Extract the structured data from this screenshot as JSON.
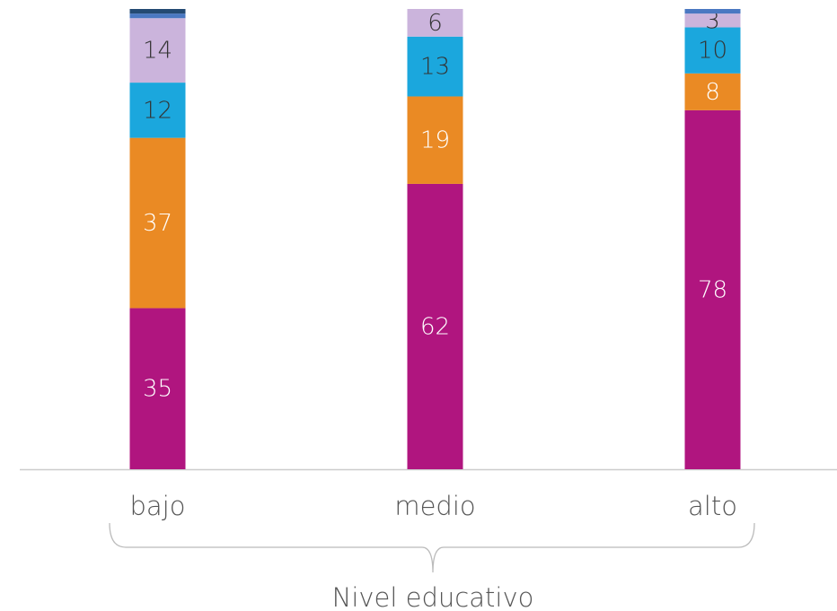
{
  "chart_data": {
    "type": "stacked_bar",
    "categories": [
      "bajo",
      "medio",
      "alto"
    ],
    "x_label": "Nivel educativo",
    "ylim": [
      0,
      100
    ],
    "series": [
      {
        "color": "#b0157f",
        "values": [
          35,
          62,
          78
        ],
        "labels": true,
        "label_color": "#ffffff"
      },
      {
        "color": "#ea8a24",
        "values": [
          37,
          19,
          8
        ],
        "labels": true,
        "label_color": "#ffffff"
      },
      {
        "color": "#1ba7dd",
        "values": [
          12,
          13,
          10
        ],
        "labels": true,
        "label_color": "#333333"
      },
      {
        "color": "#cbb4dc",
        "values": [
          14,
          6,
          3
        ],
        "labels": true,
        "label_color": "#333333"
      },
      {
        "color": "#4a78c2",
        "values": [
          1,
          0,
          1
        ],
        "labels": false
      },
      {
        "color": "#244a73",
        "values": [
          1,
          0,
          0
        ],
        "labels": false
      }
    ]
  }
}
